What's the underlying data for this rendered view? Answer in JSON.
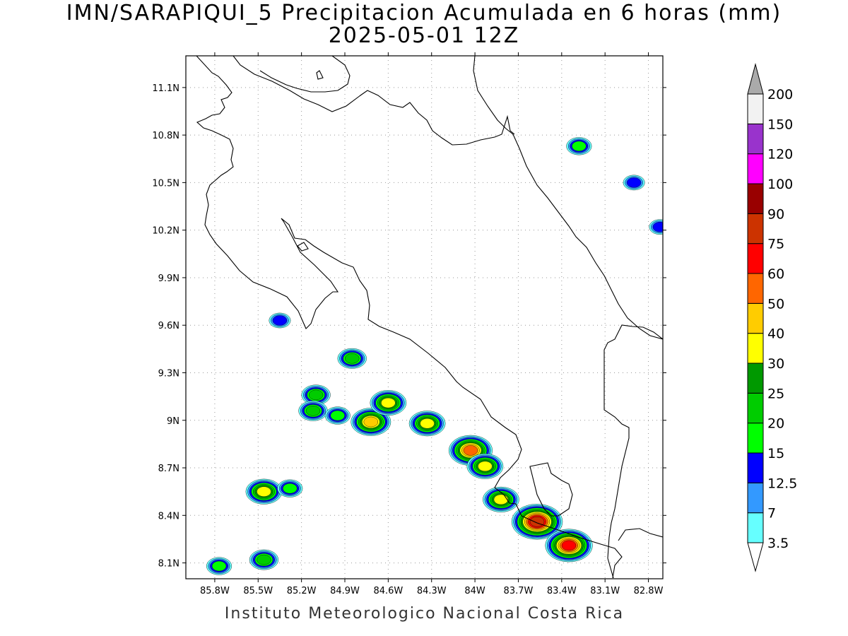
{
  "title": "IMN/SARAPIQUI_5 Precipitacion Acumulada en 6 horas (mm)",
  "subtitle": "2025-05-01 12Z",
  "footer": "Instituto Meteorologico Nacional Costa Rica",
  "map": {
    "lon_range": [
      -86.0,
      -82.7
    ],
    "lat_range": [
      8.0,
      11.3
    ],
    "lon_ticks": [
      {
        "value": -85.8,
        "label": "85.8W"
      },
      {
        "value": -85.5,
        "label": "85.5W"
      },
      {
        "value": -85.2,
        "label": "85.2W"
      },
      {
        "value": -84.9,
        "label": "84.9W"
      },
      {
        "value": -84.6,
        "label": "84.6W"
      },
      {
        "value": -84.3,
        "label": "84.3W"
      },
      {
        "value": -84.0,
        "label": "84W"
      },
      {
        "value": -83.7,
        "label": "83.7W"
      },
      {
        "value": -83.4,
        "label": "83.4W"
      },
      {
        "value": -83.1,
        "label": "83.1W"
      },
      {
        "value": -82.8,
        "label": "82.8W"
      }
    ],
    "lat_ticks": [
      {
        "value": 8.1,
        "label": "8.1N"
      },
      {
        "value": 8.4,
        "label": "8.4N"
      },
      {
        "value": 8.7,
        "label": "8.7N"
      },
      {
        "value": 9.0,
        "label": "9N"
      },
      {
        "value": 9.3,
        "label": "9.3N"
      },
      {
        "value": 9.6,
        "label": "9.6N"
      },
      {
        "value": 9.9,
        "label": "9.9N"
      },
      {
        "value": 10.2,
        "label": "10.2N"
      },
      {
        "value": 10.5,
        "label": "10.5N"
      },
      {
        "value": 10.8,
        "label": "10.8N"
      },
      {
        "value": 11.1,
        "label": "11.1N"
      }
    ],
    "grid": true
  },
  "colorbar": {
    "levels": [
      "3.5",
      "7",
      "12.5",
      "15",
      "20",
      "25",
      "30",
      "40",
      "50",
      "60",
      "75",
      "90",
      "100",
      "120",
      "150",
      "200"
    ],
    "colors": [
      "#66ffff",
      "#3399ff",
      "#0000ff",
      "#00ff00",
      "#00cc00",
      "#009900",
      "#ffff00",
      "#ffcc00",
      "#ff6600",
      "#ff0000",
      "#cc3300",
      "#990000",
      "#ff00ff",
      "#9933cc",
      "#f2f2f2",
      "#aaaaaa"
    ]
  },
  "precip_cells": [
    {
      "lon": -85.35,
      "lat": 9.63,
      "level": 2
    },
    {
      "lon": -85.1,
      "lat": 9.16,
      "level": 4
    },
    {
      "lon": -85.12,
      "lat": 9.06,
      "level": 4
    },
    {
      "lon": -84.95,
      "lat": 9.03,
      "level": 3
    },
    {
      "lon": -84.85,
      "lat": 9.39,
      "level": 4
    },
    {
      "lon": -84.72,
      "lat": 8.99,
      "level": 7
    },
    {
      "lon": -84.6,
      "lat": 9.11,
      "level": 6
    },
    {
      "lon": -84.33,
      "lat": 8.98,
      "level": 6
    },
    {
      "lon": -84.03,
      "lat": 8.81,
      "level": 8
    },
    {
      "lon": -83.93,
      "lat": 8.71,
      "level": 6
    },
    {
      "lon": -83.82,
      "lat": 8.5,
      "level": 6
    },
    {
      "lon": -83.57,
      "lat": 8.36,
      "level": 10
    },
    {
      "lon": -83.35,
      "lat": 8.21,
      "level": 9
    },
    {
      "lon": -85.46,
      "lat": 8.55,
      "level": 6
    },
    {
      "lon": -85.28,
      "lat": 8.57,
      "level": 3
    },
    {
      "lon": -85.46,
      "lat": 8.12,
      "level": 4
    },
    {
      "lon": -85.77,
      "lat": 8.08,
      "level": 3
    },
    {
      "lon": -83.28,
      "lat": 10.73,
      "level": 3
    },
    {
      "lon": -82.9,
      "lat": 10.5,
      "level": 2
    },
    {
      "lon": -82.72,
      "lat": 10.22,
      "level": 2
    }
  ]
}
